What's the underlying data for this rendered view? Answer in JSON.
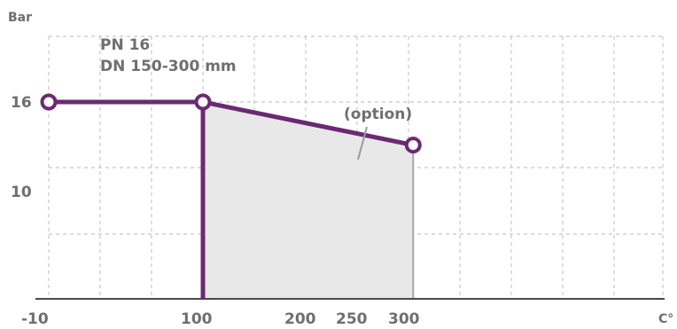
{
  "chart_data": {
    "type": "line",
    "ylabel": "Bar",
    "xlabel": "C°",
    "annotations": [
      "PN 16",
      "DN 150-300 mm"
    ],
    "option_label": "(option)",
    "x_ticks": [
      "-10",
      "100",
      "200",
      "250",
      "300"
    ],
    "y_ticks": [
      "16",
      "10"
    ],
    "series": [
      {
        "points": [
          [
            -10,
            16
          ],
          [
            100,
            16
          ],
          [
            250,
            12.5
          ]
        ],
        "color": "#6a2a72"
      }
    ],
    "shaded_region": {
      "from_x": 100,
      "to_x": 250,
      "fill": "#e8e8e8"
    },
    "grid": true
  },
  "colors": {
    "series": "#6a2a72",
    "text": "#6f6f6f",
    "grid": "#c7c7c7",
    "axis": "#4a4a4a",
    "shade": "#e8e8e8",
    "pointer": "#9a9a9a"
  }
}
